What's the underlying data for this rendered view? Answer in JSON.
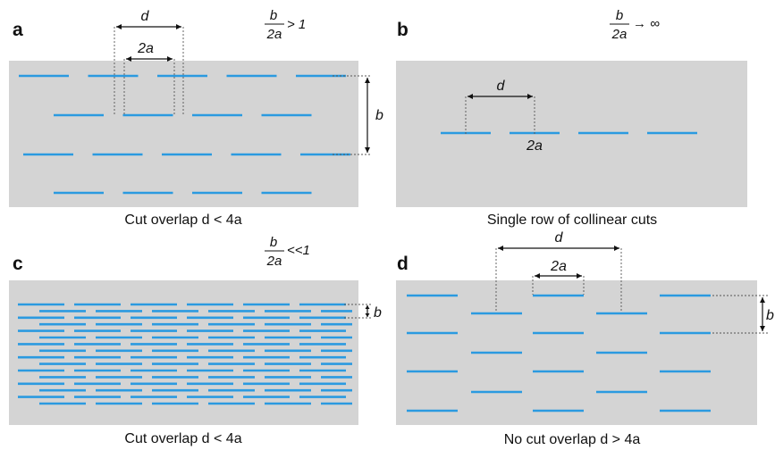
{
  "panels": {
    "a": {
      "letter": "a",
      "ratio_num": "b",
      "ratio_den": "2a",
      "ratio_rel": "> 1",
      "label_d": "d",
      "label_2a": "2a",
      "label_b": "b",
      "caption": "Cut overlap d < 4a"
    },
    "b": {
      "letter": "b",
      "ratio_num": "b",
      "ratio_den": "2a",
      "ratio_rel": "→ ∞",
      "label_d": "d",
      "label_2a": "2a",
      "caption": "Single row of collinear cuts"
    },
    "c": {
      "letter": "c",
      "ratio_num": "b",
      "ratio_den": "2a",
      "ratio_rel": "<<1",
      "label_b": "b",
      "caption": "Cut overlap d < 4a"
    },
    "d": {
      "letter": "d",
      "label_d": "d",
      "label_2a": "2a",
      "label_b": "b",
      "caption": "No cut overlap d > 4a"
    }
  },
  "colors": {
    "sheet": "#d4d4d4",
    "cut": "#2b9ae0"
  }
}
